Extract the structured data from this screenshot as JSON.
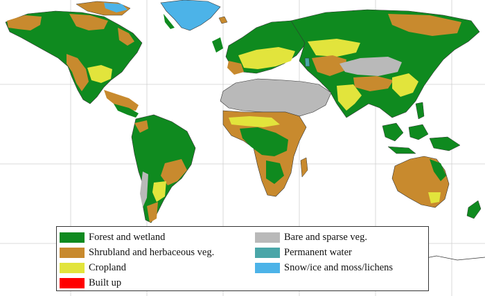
{
  "colors": {
    "ocean": "#ffffff",
    "grid": "#cfcfcf",
    "coast": "#333333",
    "forest": "#0f8a1f",
    "shrub": "#c88a2e",
    "crop": "#e2e43c",
    "built": "#ff0000",
    "bare": "#b9b9b9",
    "water": "#4aa6a8",
    "snow": "#4cb3e8"
  },
  "legend": {
    "items": [
      {
        "label": "Forest and wetland",
        "color": "#0f8a1f"
      },
      {
        "label": "Shrubland and herbaceous veg.",
        "color": "#c88a2e"
      },
      {
        "label": "Cropland",
        "color": "#e2e43c"
      },
      {
        "label": "Built up",
        "color": "#ff0000"
      },
      {
        "label": "Bare and sparse veg.",
        "color": "#b9b9b9"
      },
      {
        "label": "Permanent water",
        "color": "#4aa6a8"
      },
      {
        "label": "Snow/ice and moss/lichens",
        "color": "#4cb3e8"
      }
    ]
  }
}
